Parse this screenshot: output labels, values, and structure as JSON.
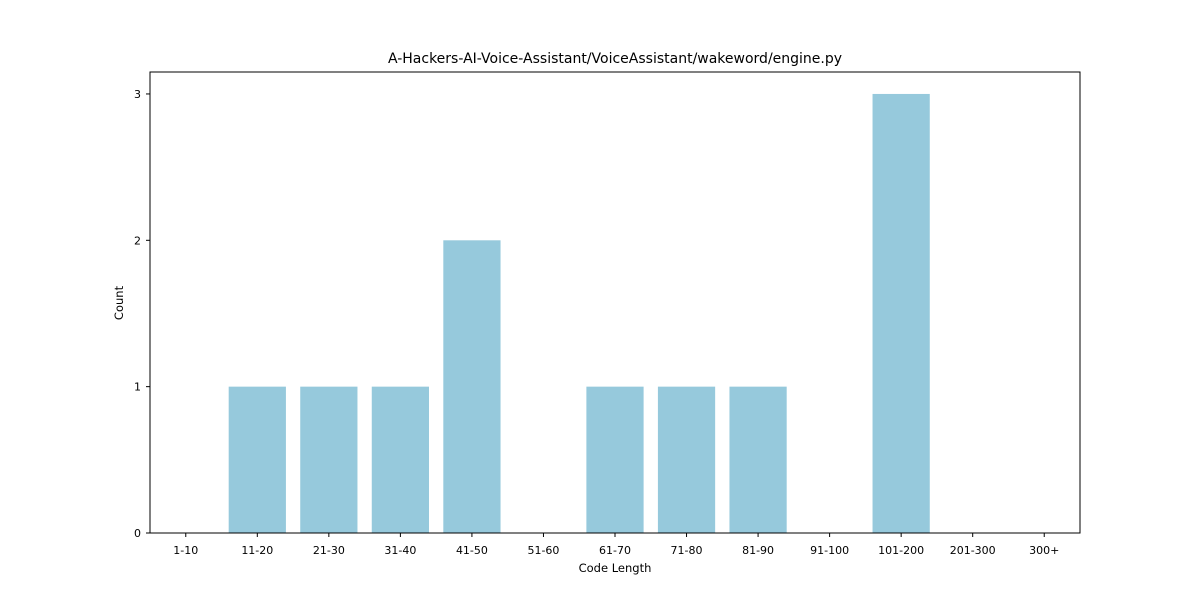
{
  "chart_data": {
    "type": "bar",
    "title": "A-Hackers-AI-Voice-Assistant/VoiceAssistant/wakeword/engine.py",
    "xlabel": "Code Length",
    "ylabel": "Count",
    "categories": [
      "1-10",
      "11-20",
      "21-30",
      "31-40",
      "41-50",
      "51-60",
      "61-70",
      "71-80",
      "81-90",
      "91-100",
      "101-200",
      "201-300",
      "300+"
    ],
    "values": [
      0,
      1,
      1,
      1,
      2,
      0,
      1,
      1,
      1,
      0,
      3,
      0,
      0
    ],
    "yticks": [
      "0",
      "1",
      "2",
      "3"
    ],
    "ylim": [
      0,
      3.15
    ],
    "bar_color": "#96c9dc",
    "grid": false,
    "legend": false
  }
}
